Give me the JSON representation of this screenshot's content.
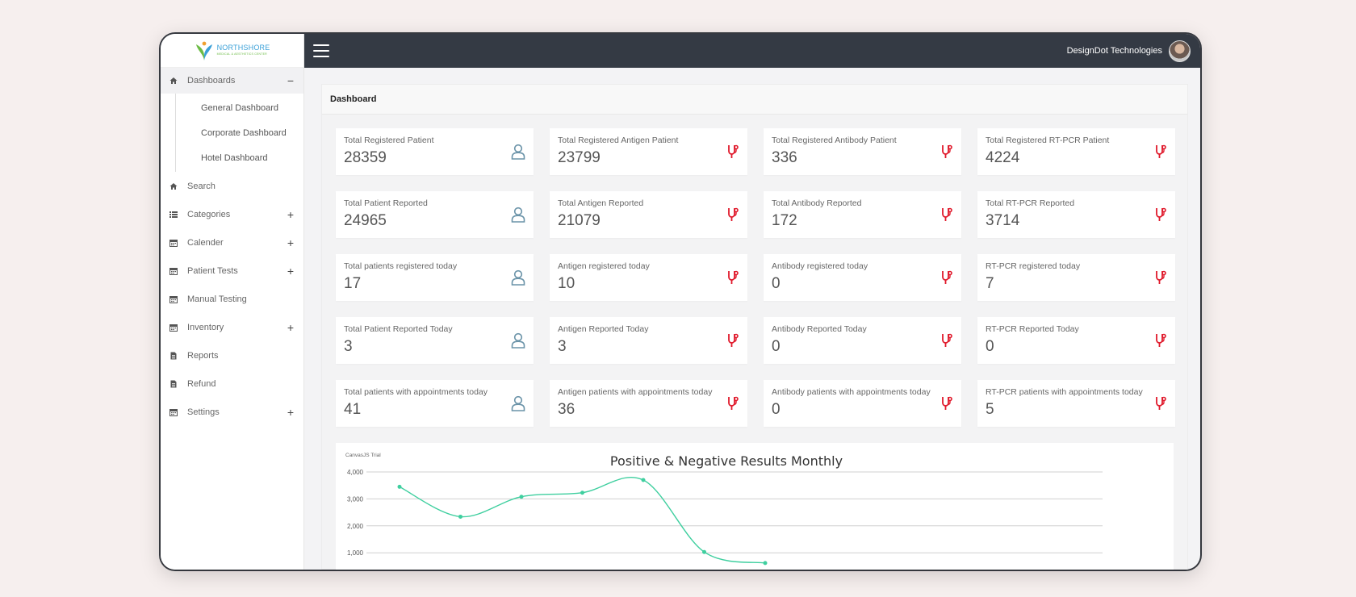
{
  "app": {
    "logo": {
      "title": "NORTHSHORE",
      "subtitle": "MEDICAL & AESTHETICS CENTER"
    },
    "user": {
      "name": "DesignDot Technologies"
    }
  },
  "sidebar": {
    "items": [
      {
        "label": "Dashboards",
        "icon": "home-icon",
        "toggle": "−",
        "expanded": true,
        "children": [
          "General Dashboard",
          "Corporate Dashboard",
          "Hotel Dashboard"
        ]
      },
      {
        "label": "Search",
        "icon": "home-icon",
        "toggle": ""
      },
      {
        "label": "Categories",
        "icon": "list-icon",
        "toggle": "+"
      },
      {
        "label": "Calender",
        "icon": "calendar-icon",
        "toggle": "+"
      },
      {
        "label": "Patient Tests",
        "icon": "calendar-icon",
        "toggle": "+"
      },
      {
        "label": "Manual Testing",
        "icon": "calendar-icon",
        "toggle": ""
      },
      {
        "label": "Inventory",
        "icon": "calendar-icon",
        "toggle": "+"
      },
      {
        "label": "Reports",
        "icon": "file-icon",
        "toggle": ""
      },
      {
        "label": "Refund",
        "icon": "file-icon",
        "toggle": ""
      },
      {
        "label": "Settings",
        "icon": "calendar-icon",
        "toggle": "+"
      }
    ]
  },
  "page": {
    "title": "Dashboard"
  },
  "cards": [
    {
      "label": "Total Registered Patient",
      "value": "28359",
      "icon": "user-icon"
    },
    {
      "label": "Total Registered Antigen Patient",
      "value": "23799",
      "icon": "stethoscope-icon"
    },
    {
      "label": "Total Registered Antibody Patient",
      "value": "336",
      "icon": "stethoscope-icon"
    },
    {
      "label": "Total Registered RT-PCR Patient",
      "value": "4224",
      "icon": "stethoscope-icon"
    },
    {
      "label": "Total Patient Reported",
      "value": "24965",
      "icon": "user-icon"
    },
    {
      "label": "Total Antigen Reported",
      "value": "21079",
      "icon": "stethoscope-icon"
    },
    {
      "label": "Total Antibody Reported",
      "value": "172",
      "icon": "stethoscope-icon"
    },
    {
      "label": "Total RT-PCR Reported",
      "value": "3714",
      "icon": "stethoscope-icon"
    },
    {
      "label": "Total patients registered today",
      "value": "17",
      "icon": "user-icon"
    },
    {
      "label": "Antigen registered today",
      "value": "10",
      "icon": "stethoscope-icon"
    },
    {
      "label": "Antibody registered today",
      "value": "0",
      "icon": "stethoscope-icon"
    },
    {
      "label": "RT-PCR registered today",
      "value": "7",
      "icon": "stethoscope-icon"
    },
    {
      "label": "Total Patient Reported Today",
      "value": "3",
      "icon": "user-icon"
    },
    {
      "label": "Antigen Reported Today",
      "value": "3",
      "icon": "stethoscope-icon"
    },
    {
      "label": "Antibody Reported Today",
      "value": "0",
      "icon": "stethoscope-icon"
    },
    {
      "label": "RT-PCR Reported Today",
      "value": "0",
      "icon": "stethoscope-icon"
    },
    {
      "label": "Total patients with appointments today",
      "value": "41",
      "icon": "user-icon"
    },
    {
      "label": "Antigen patients with appointments today",
      "value": "36",
      "icon": "stethoscope-icon"
    },
    {
      "label": "Antibody patients with appointments today",
      "value": "0",
      "icon": "stethoscope-icon"
    },
    {
      "label": "RT-PCR patients with appointments today",
      "value": "5",
      "icon": "stethoscope-icon"
    }
  ],
  "colors": {
    "topbar": "#343a44",
    "user_icon": "#6a93a8",
    "stethoscope_icon": "#e0192b",
    "chart_line": "#3fcf9f"
  },
  "chart_data": {
    "type": "line",
    "title": "Positive & Negative Results Monthly",
    "watermark": "CanvasJS Trial",
    "ylim": [
      1000,
      4000
    ],
    "yticks": [
      "4,000",
      "3,000",
      "2,000",
      "1,000"
    ],
    "grid": true,
    "series": [
      {
        "values": [
          3450,
          2340,
          3080,
          3230,
          3700,
          1030,
          620
        ]
      }
    ]
  }
}
